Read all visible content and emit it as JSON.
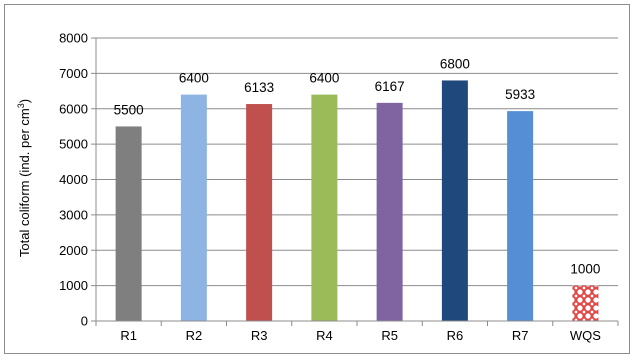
{
  "chart_data": {
    "type": "bar",
    "title": "",
    "xlabel": "",
    "ylabel_main": "Total coliform (ind. per cm",
    "ylabel_sup": "3",
    "ylabel_close": ")",
    "ylim": [
      0,
      8000
    ],
    "yticks": [
      0,
      1000,
      2000,
      3000,
      4000,
      5000,
      6000,
      7000,
      8000
    ],
    "grid": true,
    "legend": "none",
    "categories": [
      "R1",
      "R2",
      "R3",
      "R4",
      "R5",
      "R6",
      "R7",
      "WQS"
    ],
    "values": [
      5500,
      6400,
      6133,
      6400,
      6167,
      6800,
      5933,
      1000
    ],
    "colors": [
      "#7f7f7f",
      "#8eb4e3",
      "#c0504d",
      "#9bbb59",
      "#8064a2",
      "#1f497d",
      "#558ed5",
      "#e46c6c"
    ],
    "wqs_pattern": "red-white-circles"
  }
}
